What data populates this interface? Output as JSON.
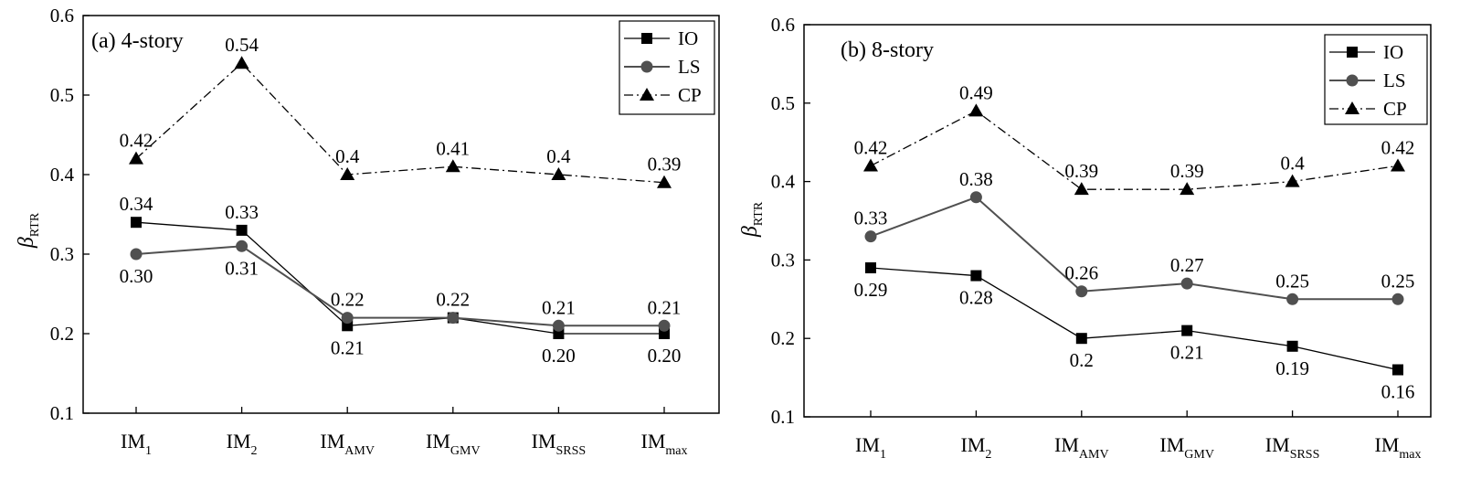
{
  "chart_data": [
    {
      "type": "line",
      "title": "(a) 4-story",
      "ylabel_main": "β",
      "ylabel_sub": "RTR",
      "ylim": [
        0.1,
        0.6
      ],
      "yticks": [
        "0.1",
        "0.2",
        "0.3",
        "0.4",
        "0.5",
        "0.6"
      ],
      "categories": [
        {
          "main": "IM",
          "sub": "1"
        },
        {
          "main": "IM",
          "sub": "2"
        },
        {
          "main": "IM",
          "sub": "AMV"
        },
        {
          "main": "IM",
          "sub": "GMV"
        },
        {
          "main": "IM",
          "sub": "SRSS"
        },
        {
          "main": "IM",
          "sub": "max"
        }
      ],
      "legend_position": "top-right",
      "series": [
        {
          "name": "IO",
          "marker": "square",
          "line": "solid",
          "color": "#000000",
          "values": [
            0.34,
            0.33,
            0.21,
            0.22,
            0.2,
            0.2
          ],
          "labels": [
            "0.34",
            "0.33",
            "0.21",
            "",
            "0.20",
            "0.20"
          ],
          "label_pos": [
            "above",
            "above",
            "below",
            "above",
            "below",
            "below"
          ]
        },
        {
          "name": "LS",
          "marker": "circle",
          "line": "solid",
          "color": "#505050",
          "values": [
            0.3,
            0.31,
            0.22,
            0.22,
            0.21,
            0.21
          ],
          "labels": [
            "0.30",
            "0.31",
            "0.22",
            "0.22",
            "0.21",
            "0.21"
          ],
          "label_pos": [
            "below",
            "below",
            "above",
            "above",
            "above",
            "above"
          ]
        },
        {
          "name": "CP",
          "marker": "triangle",
          "line": "dashdot",
          "color": "#000000",
          "values": [
            0.42,
            0.54,
            0.4,
            0.41,
            0.4,
            0.39
          ],
          "labels": [
            "0.42",
            "0.54",
            "0.4",
            "0.41",
            "0.4",
            "0.39"
          ],
          "label_pos": [
            "above",
            "above",
            "above",
            "above",
            "above",
            "above"
          ]
        }
      ]
    },
    {
      "type": "line",
      "title": "(b) 8-story",
      "ylabel_main": "β",
      "ylabel_sub": "RTR",
      "ylim": [
        0.1,
        0.6
      ],
      "yticks": [
        "0.1",
        "0.2",
        "0.3",
        "0.4",
        "0.5",
        "0.6"
      ],
      "categories": [
        {
          "main": "IM",
          "sub": "1"
        },
        {
          "main": "IM",
          "sub": "2"
        },
        {
          "main": "IM",
          "sub": "AMV"
        },
        {
          "main": "IM",
          "sub": "GMV"
        },
        {
          "main": "IM",
          "sub": "SRSS"
        },
        {
          "main": "IM",
          "sub": "max"
        }
      ],
      "legend_position": "top-right",
      "series": [
        {
          "name": "IO",
          "marker": "square",
          "line": "solid",
          "color": "#000000",
          "values": [
            0.29,
            0.28,
            0.2,
            0.21,
            0.19,
            0.16
          ],
          "labels": [
            "0.29",
            "0.28",
            "0.2",
            "0.21",
            "0.19",
            "0.16"
          ],
          "label_pos": [
            "below",
            "below",
            "below",
            "below",
            "below",
            "below"
          ]
        },
        {
          "name": "LS",
          "marker": "circle",
          "line": "solid",
          "color": "#505050",
          "values": [
            0.33,
            0.38,
            0.26,
            0.27,
            0.25,
            0.25
          ],
          "labels": [
            "0.33",
            "0.38",
            "0.26",
            "0.27",
            "0.25",
            "0.25"
          ],
          "label_pos": [
            "above",
            "above",
            "above",
            "above",
            "above",
            "above"
          ]
        },
        {
          "name": "CP",
          "marker": "triangle",
          "line": "dashdot",
          "color": "#000000",
          "values": [
            0.42,
            0.49,
            0.39,
            0.39,
            0.4,
            0.42
          ],
          "labels": [
            "0.42",
            "0.49",
            "0.39",
            "0.39",
            "0.4",
            "0.42"
          ],
          "label_pos": [
            "above",
            "above",
            "above",
            "above",
            "above",
            "above"
          ]
        }
      ]
    }
  ]
}
